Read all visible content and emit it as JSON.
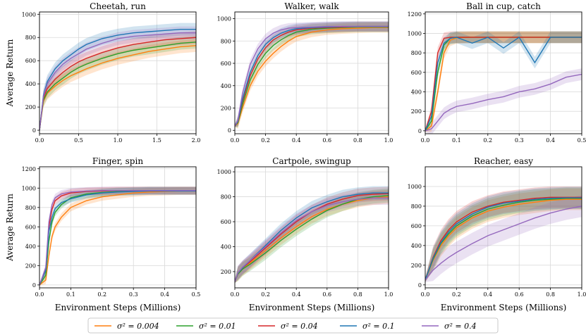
{
  "figure": {
    "ylabel": "Average Return",
    "xlabel": "Environment Steps (Millions)"
  },
  "legend": [
    {
      "label": "σ² = 0.004",
      "color": "#ff7f0e"
    },
    {
      "label": "σ² = 0.01",
      "color": "#2ca02c"
    },
    {
      "label": "σ² = 0.04",
      "color": "#d62728"
    },
    {
      "label": "σ² = 0.1",
      "color": "#1f77b4"
    },
    {
      "label": "σ² = 0.4",
      "color": "#9467bd"
    }
  ],
  "chart_data": [
    {
      "type": "line",
      "title": "Cheetah, run",
      "xlim": [
        0,
        2.0
      ],
      "ylim": [
        -30,
        1020
      ],
      "xticks": [
        "0.0",
        "0.5",
        "1.0",
        "1.5",
        "2.0"
      ],
      "yticks": [
        "0",
        "200",
        "400",
        "600",
        "800",
        "1000"
      ],
      "x": [
        0,
        0.05,
        0.1,
        0.2,
        0.3,
        0.4,
        0.5,
        0.6,
        0.8,
        1.0,
        1.2,
        1.4,
        1.6,
        1.8,
        2.0
      ],
      "series": [
        {
          "name": "σ² = 0.004",
          "values": [
            0,
            250,
            320,
            380,
            430,
            470,
            500,
            530,
            580,
            620,
            650,
            680,
            700,
            720,
            730
          ]
        },
        {
          "name": "σ² = 0.01",
          "values": [
            0,
            260,
            330,
            400,
            450,
            500,
            540,
            570,
            620,
            660,
            690,
            710,
            730,
            750,
            760
          ]
        },
        {
          "name": "σ² = 0.04",
          "values": [
            0,
            280,
            360,
            440,
            500,
            550,
            590,
            620,
            670,
            710,
            740,
            760,
            780,
            790,
            800
          ]
        },
        {
          "name": "σ² = 0.1",
          "values": [
            0,
            300,
            420,
            530,
            600,
            650,
            700,
            740,
            790,
            820,
            840,
            850,
            860,
            870,
            870
          ]
        },
        {
          "name": "σ² = 0.4",
          "values": [
            0,
            290,
            400,
            500,
            570,
            620,
            660,
            700,
            750,
            790,
            810,
            820,
            830,
            840,
            840
          ]
        }
      ]
    },
    {
      "type": "line",
      "title": "Walker, walk",
      "xlim": [
        0,
        1.0
      ],
      "ylim": [
        -30,
        1060
      ],
      "xticks": [
        "0.0",
        "0.2",
        "0.4",
        "0.6",
        "0.8",
        "1.0"
      ],
      "yticks": [
        "0",
        "200",
        "400",
        "600",
        "800",
        "1000"
      ],
      "x": [
        0,
        0.02,
        0.05,
        0.1,
        0.15,
        0.2,
        0.25,
        0.3,
        0.35,
        0.4,
        0.5,
        0.6,
        0.7,
        0.8,
        0.9,
        1.0
      ],
      "series": [
        {
          "name": "σ² = 0.004",
          "values": [
            40,
            60,
            200,
            400,
            530,
            620,
            690,
            750,
            800,
            840,
            880,
            900,
            910,
            915,
            920,
            920
          ]
        },
        {
          "name": "σ² = 0.01",
          "values": [
            40,
            70,
            230,
            450,
            590,
            690,
            760,
            810,
            850,
            880,
            905,
            915,
            920,
            925,
            925,
            925
          ]
        },
        {
          "name": "σ² = 0.04",
          "values": [
            40,
            80,
            260,
            490,
            640,
            740,
            810,
            850,
            880,
            900,
            915,
            920,
            925,
            930,
            930,
            930
          ]
        },
        {
          "name": "σ² = 0.1",
          "values": [
            40,
            80,
            280,
            520,
            670,
            770,
            830,
            870,
            895,
            910,
            920,
            925,
            930,
            930,
            930,
            930
          ]
        },
        {
          "name": "σ² = 0.4",
          "values": [
            40,
            90,
            330,
            590,
            730,
            820,
            870,
            900,
            915,
            920,
            925,
            930,
            930,
            930,
            930,
            930
          ]
        }
      ]
    },
    {
      "type": "line",
      "title": "Ball in cup, catch",
      "xlim": [
        0,
        0.5
      ],
      "ylim": [
        -30,
        1220
      ],
      "xticks": [
        "0.0",
        "0.1",
        "0.2",
        "0.3",
        "0.4",
        "0.5"
      ],
      "yticks": [
        "0",
        "200",
        "400",
        "600",
        "800",
        "1000",
        "1200"
      ],
      "x": [
        0,
        0.02,
        0.04,
        0.06,
        0.08,
        0.1,
        0.15,
        0.2,
        0.25,
        0.3,
        0.35,
        0.4,
        0.45,
        0.5
      ],
      "series": [
        {
          "name": "σ² = 0.004",
          "values": [
            0,
            50,
            400,
            800,
            930,
            955,
            960,
            960,
            960,
            960,
            960,
            960,
            960,
            960
          ]
        },
        {
          "name": "σ² = 0.01",
          "values": [
            0,
            100,
            600,
            880,
            950,
            960,
            960,
            960,
            960,
            960,
            960,
            960,
            960,
            960
          ]
        },
        {
          "name": "σ² = 0.04",
          "values": [
            0,
            200,
            800,
            950,
            960,
            960,
            960,
            960,
            960,
            960,
            960,
            960,
            960,
            960
          ]
        },
        {
          "name": "σ² = 0.1",
          "values": [
            0,
            150,
            700,
            900,
            950,
            960,
            900,
            960,
            850,
            960,
            700,
            960,
            960,
            960
          ]
        },
        {
          "name": "σ² = 0.4",
          "values": [
            0,
            20,
            100,
            180,
            220,
            250,
            280,
            320,
            350,
            400,
            430,
            480,
            550,
            580
          ]
        }
      ]
    },
    {
      "type": "line",
      "title": "Finger, spin",
      "xlim": [
        0,
        0.5
      ],
      "ylim": [
        -30,
        1220
      ],
      "xticks": [
        "0.0",
        "0.1",
        "0.2",
        "0.3",
        "0.4",
        "0.5"
      ],
      "yticks": [
        "0",
        "200",
        "400",
        "600",
        "800",
        "1000",
        "1200"
      ],
      "x": [
        0,
        0.02,
        0.03,
        0.04,
        0.05,
        0.07,
        0.1,
        0.15,
        0.2,
        0.25,
        0.3,
        0.35,
        0.4,
        0.45,
        0.5
      ],
      "series": [
        {
          "name": "σ² = 0.004",
          "values": [
            0,
            50,
            300,
            500,
            600,
            700,
            800,
            870,
            910,
            930,
            950,
            960,
            965,
            970,
            970
          ]
        },
        {
          "name": "σ² = 0.01",
          "values": [
            0,
            100,
            450,
            650,
            750,
            830,
            900,
            940,
            955,
            965,
            970,
            975,
            975,
            975,
            975
          ]
        },
        {
          "name": "σ² = 0.04",
          "values": [
            0,
            150,
            600,
            780,
            870,
            920,
            950,
            965,
            970,
            975,
            975,
            975,
            975,
            975,
            975
          ]
        },
        {
          "name": "σ² = 0.1",
          "values": [
            0,
            150,
            550,
            700,
            790,
            850,
            890,
            930,
            950,
            960,
            965,
            970,
            970,
            970,
            970
          ]
        },
        {
          "name": "σ² = 0.4",
          "values": [
            0,
            180,
            650,
            830,
            900,
            940,
            960,
            970,
            975,
            975,
            975,
            975,
            975,
            975,
            975
          ]
        }
      ]
    },
    {
      "type": "line",
      "title": "Cartpole, swingup",
      "xlim": [
        0,
        1.0
      ],
      "ylim": [
        70,
        1040
      ],
      "xticks": [
        "0.0",
        "0.2",
        "0.4",
        "0.6",
        "0.8",
        "1.0"
      ],
      "yticks": [
        "200",
        "400",
        "600",
        "800",
        "1000"
      ],
      "x": [
        0,
        0.02,
        0.05,
        0.1,
        0.2,
        0.3,
        0.4,
        0.5,
        0.6,
        0.7,
        0.8,
        0.9,
        1.0
      ],
      "series": [
        {
          "name": "σ² = 0.004",
          "values": [
            120,
            180,
            220,
            270,
            370,
            470,
            560,
            640,
            700,
            740,
            770,
            790,
            800
          ]
        },
        {
          "name": "σ² = 0.01",
          "values": [
            120,
            180,
            220,
            260,
            350,
            450,
            540,
            620,
            690,
            740,
            780,
            800,
            810
          ]
        },
        {
          "name": "σ² = 0.04",
          "values": [
            120,
            190,
            230,
            280,
            390,
            500,
            600,
            680,
            740,
            780,
            810,
            820,
            825
          ]
        },
        {
          "name": "σ² = 0.1",
          "values": [
            120,
            190,
            230,
            290,
            410,
            530,
            630,
            710,
            760,
            800,
            820,
            830,
            830
          ]
        },
        {
          "name": "σ² = 0.4",
          "values": [
            120,
            190,
            235,
            290,
            400,
            510,
            610,
            680,
            730,
            760,
            780,
            790,
            790
          ]
        }
      ]
    },
    {
      "type": "line",
      "title": "Reacher, easy",
      "xlim": [
        0,
        1.0
      ],
      "ylim": [
        -30,
        1200
      ],
      "xticks": [
        "0.0",
        "0.2",
        "0.4",
        "0.6",
        "0.8",
        "1.0"
      ],
      "yticks": [
        "0",
        "200",
        "400",
        "600",
        "800",
        "1000"
      ],
      "x": [
        0,
        0.05,
        0.1,
        0.15,
        0.2,
        0.3,
        0.4,
        0.5,
        0.6,
        0.7,
        0.8,
        0.9,
        1.0
      ],
      "series": [
        {
          "name": "σ² = 0.004",
          "values": [
            50,
            250,
            400,
            500,
            580,
            680,
            750,
            790,
            820,
            840,
            860,
            870,
            870
          ]
        },
        {
          "name": "σ² = 0.01",
          "values": [
            50,
            260,
            420,
            520,
            600,
            700,
            770,
            810,
            840,
            860,
            870,
            880,
            880
          ]
        },
        {
          "name": "σ² = 0.04",
          "values": [
            50,
            280,
            450,
            560,
            640,
            740,
            800,
            840,
            860,
            880,
            890,
            890,
            890
          ]
        },
        {
          "name": "σ² = 0.1",
          "values": [
            50,
            270,
            430,
            540,
            620,
            720,
            790,
            830,
            850,
            870,
            880,
            885,
            885
          ]
        },
        {
          "name": "σ² = 0.4",
          "values": [
            50,
            150,
            220,
            280,
            330,
            420,
            500,
            560,
            620,
            680,
            730,
            770,
            800
          ]
        }
      ]
    }
  ]
}
